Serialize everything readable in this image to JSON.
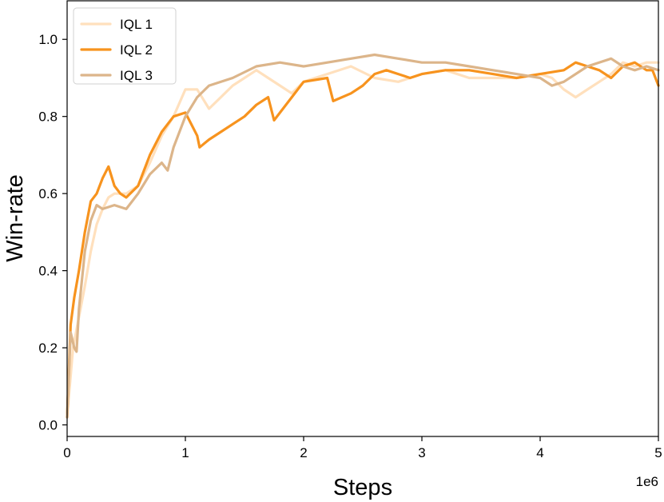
{
  "chart_data": {
    "type": "line",
    "title": "",
    "xlabel": "Steps",
    "ylabel": "Win-rate",
    "x_offset_label": "1e6",
    "xlim": [
      0,
      5
    ],
    "ylim": [
      -0.03,
      1.1
    ],
    "x_ticks": [
      0,
      1,
      2,
      3,
      4,
      5
    ],
    "x_tick_labels": [
      "0",
      "1",
      "2",
      "3",
      "4",
      "5"
    ],
    "y_ticks": [
      0.0,
      0.2,
      0.4,
      0.6,
      0.8,
      1.0
    ],
    "y_tick_labels": [
      "0.0",
      "0.2",
      "0.4",
      "0.6",
      "0.8",
      "1.0"
    ],
    "grid": false,
    "legend_position": "top-left",
    "series": [
      {
        "name": "IQL 1",
        "color": "#ffe0bd",
        "x": [
          0,
          0.05,
          0.1,
          0.15,
          0.2,
          0.25,
          0.3,
          0.35,
          0.4,
          0.5,
          0.6,
          0.7,
          0.8,
          0.9,
          1.0,
          1.1,
          1.2,
          1.3,
          1.4,
          1.5,
          1.6,
          1.7,
          1.8,
          1.9,
          2.0,
          2.2,
          2.4,
          2.6,
          2.8,
          3.0,
          3.2,
          3.4,
          3.6,
          3.8,
          4.0,
          4.1,
          4.2,
          4.3,
          4.4,
          4.5,
          4.6,
          4.7,
          4.8,
          4.9,
          5.0
        ],
        "y": [
          0.02,
          0.2,
          0.28,
          0.36,
          0.45,
          0.52,
          0.56,
          0.59,
          0.6,
          0.6,
          0.62,
          0.68,
          0.75,
          0.8,
          0.87,
          0.87,
          0.82,
          0.85,
          0.88,
          0.9,
          0.92,
          0.9,
          0.88,
          0.86,
          0.89,
          0.91,
          0.93,
          0.9,
          0.89,
          0.91,
          0.92,
          0.9,
          0.9,
          0.9,
          0.91,
          0.9,
          0.87,
          0.85,
          0.87,
          0.89,
          0.91,
          0.94,
          0.93,
          0.94,
          0.94
        ]
      },
      {
        "name": "IQL 2",
        "color": "#f7931e",
        "x": [
          0,
          0.03,
          0.06,
          0.1,
          0.15,
          0.2,
          0.25,
          0.3,
          0.35,
          0.4,
          0.45,
          0.5,
          0.6,
          0.7,
          0.8,
          0.9,
          1.0,
          1.1,
          1.12,
          1.2,
          1.3,
          1.4,
          1.5,
          1.6,
          1.7,
          1.75,
          1.8,
          1.9,
          2.0,
          2.2,
          2.25,
          2.4,
          2.5,
          2.6,
          2.7,
          2.8,
          2.9,
          3.0,
          3.2,
          3.4,
          3.6,
          3.8,
          4.0,
          4.2,
          4.3,
          4.4,
          4.5,
          4.6,
          4.7,
          4.8,
          4.9,
          4.95,
          5.0
        ],
        "y": [
          0.02,
          0.26,
          0.33,
          0.4,
          0.5,
          0.58,
          0.6,
          0.64,
          0.67,
          0.62,
          0.6,
          0.59,
          0.62,
          0.7,
          0.76,
          0.8,
          0.81,
          0.75,
          0.72,
          0.74,
          0.76,
          0.78,
          0.8,
          0.83,
          0.85,
          0.79,
          0.81,
          0.85,
          0.89,
          0.9,
          0.84,
          0.86,
          0.88,
          0.91,
          0.92,
          0.91,
          0.9,
          0.91,
          0.92,
          0.92,
          0.91,
          0.9,
          0.91,
          0.92,
          0.94,
          0.93,
          0.92,
          0.9,
          0.93,
          0.94,
          0.92,
          0.92,
          0.88
        ]
      },
      {
        "name": "IQL 3",
        "color": "#dcb58a",
        "x": [
          0,
          0.03,
          0.06,
          0.08,
          0.1,
          0.15,
          0.2,
          0.25,
          0.3,
          0.4,
          0.5,
          0.6,
          0.7,
          0.8,
          0.85,
          0.9,
          1.0,
          1.1,
          1.2,
          1.4,
          1.6,
          1.8,
          2.0,
          2.2,
          2.4,
          2.6,
          2.8,
          3.0,
          3.2,
          3.4,
          3.6,
          3.8,
          4.0,
          4.1,
          4.2,
          4.4,
          4.6,
          4.7,
          4.8,
          4.9,
          5.0
        ],
        "y": [
          0.02,
          0.24,
          0.2,
          0.19,
          0.3,
          0.45,
          0.53,
          0.57,
          0.56,
          0.57,
          0.56,
          0.6,
          0.65,
          0.68,
          0.66,
          0.72,
          0.8,
          0.85,
          0.88,
          0.9,
          0.93,
          0.94,
          0.93,
          0.94,
          0.95,
          0.96,
          0.95,
          0.94,
          0.94,
          0.93,
          0.92,
          0.91,
          0.9,
          0.88,
          0.89,
          0.93,
          0.95,
          0.93,
          0.92,
          0.93,
          0.92
        ]
      }
    ]
  }
}
